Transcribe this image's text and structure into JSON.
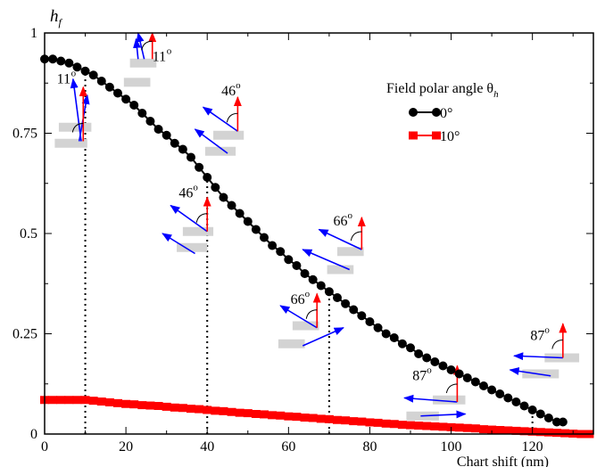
{
  "chart_data": {
    "type": "scatter",
    "xlabel": "Chart shift (nm)",
    "ylabel": "h",
    "ylabel_sub": "f",
    "xlim": [
      0,
      135
    ],
    "ylim": [
      0,
      1
    ],
    "x_ticks": [
      {
        "v": 0,
        "label": "0"
      },
      {
        "v": 20,
        "label": "20"
      },
      {
        "v": 40,
        "label": "40"
      },
      {
        "v": 60,
        "label": "60"
      },
      {
        "v": 80,
        "label": "80"
      },
      {
        "v": 100,
        "label": "100"
      },
      {
        "v": 120,
        "label": "120"
      }
    ],
    "y_ticks": [
      {
        "v": 0,
        "label": "0"
      },
      {
        "v": 0.25,
        "label": "0.25"
      },
      {
        "v": 0.5,
        "label": "0.5"
      },
      {
        "v": 0.75,
        "label": "0.75"
      },
      {
        "v": 1,
        "label": "1"
      }
    ],
    "grid": false,
    "legend": {
      "title": "Field polar angle θ",
      "title_sub": "h",
      "placement": "top-right",
      "entries": [
        {
          "label": "0°",
          "color": "#000000"
        },
        {
          "label": "10°",
          "color": "#ff0000"
        }
      ]
    },
    "series": [
      {
        "name": "0°",
        "color": "#000000",
        "x": [
          0,
          2,
          4,
          6,
          8,
          10,
          12,
          14,
          16,
          18,
          20,
          22,
          24,
          26,
          28,
          30,
          32,
          34,
          36,
          38,
          40,
          42,
          44,
          46,
          48,
          50,
          52,
          54,
          56,
          58,
          60,
          62,
          64,
          66,
          68,
          70,
          72,
          74,
          76,
          78,
          80,
          82,
          84,
          86,
          88,
          90,
          92,
          94,
          96,
          98,
          100,
          102,
          104,
          106,
          108,
          110,
          112,
          114,
          116,
          118,
          120,
          122,
          124,
          126,
          127.5
        ],
        "y": [
          0.935,
          0.935,
          0.93,
          0.925,
          0.915,
          0.905,
          0.895,
          0.88,
          0.865,
          0.85,
          0.835,
          0.82,
          0.8,
          0.78,
          0.76,
          0.745,
          0.725,
          0.71,
          0.69,
          0.665,
          0.64,
          0.615,
          0.59,
          0.57,
          0.55,
          0.53,
          0.51,
          0.49,
          0.47,
          0.455,
          0.435,
          0.42,
          0.4,
          0.385,
          0.37,
          0.355,
          0.34,
          0.325,
          0.31,
          0.295,
          0.28,
          0.265,
          0.25,
          0.24,
          0.225,
          0.215,
          0.2,
          0.19,
          0.18,
          0.17,
          0.16,
          0.15,
          0.14,
          0.13,
          0.12,
          0.11,
          0.1,
          0.09,
          0.08,
          0.07,
          0.06,
          0.05,
          0.04,
          0.03,
          0.03
        ]
      },
      {
        "name": "10°",
        "color": "#ff0000",
        "x": [
          0,
          2,
          4,
          6,
          8,
          10,
          12,
          14,
          16,
          18,
          20,
          22,
          24,
          26,
          28,
          30,
          32,
          34,
          36,
          38,
          40,
          42,
          44,
          46,
          48,
          50,
          52,
          54,
          56,
          58,
          60,
          62,
          64,
          66,
          68,
          70,
          72,
          74,
          76,
          78,
          80,
          82,
          84,
          86,
          88,
          90,
          92,
          94,
          96,
          98,
          100,
          102,
          104,
          106,
          108,
          110,
          112,
          114,
          116,
          118,
          120,
          122,
          124,
          126,
          128,
          130,
          132,
          134
        ],
        "y": [
          0.085,
          0.085,
          0.085,
          0.085,
          0.085,
          0.085,
          0.083,
          0.081,
          0.079,
          0.077,
          0.075,
          0.074,
          0.072,
          0.071,
          0.07,
          0.068,
          0.066,
          0.065,
          0.063,
          0.062,
          0.06,
          0.058,
          0.057,
          0.055,
          0.053,
          0.052,
          0.05,
          0.049,
          0.047,
          0.046,
          0.044,
          0.043,
          0.041,
          0.04,
          0.038,
          0.037,
          0.035,
          0.034,
          0.032,
          0.031,
          0.029,
          0.028,
          0.026,
          0.025,
          0.023,
          0.022,
          0.021,
          0.02,
          0.019,
          0.018,
          0.017,
          0.016,
          0.015,
          0.014,
          0.012,
          0.011,
          0.01,
          0.009,
          0.008,
          0.007,
          0.006,
          0.005,
          0.004,
          0.003,
          0.002,
          0.001,
          0,
          0
        ]
      }
    ],
    "guide_lines_x": [
      10,
      40,
      70,
      120
    ],
    "annotations": [
      {
        "id": "a1",
        "label": "11",
        "deg": "o",
        "x": 26.5,
        "y": 0.93,
        "arrows": [
          [
            24.5,
            0.935,
            23,
            1.0,
            "blue"
          ],
          [
            23,
            0.935,
            22.5,
            0.985,
            "blue"
          ],
          [
            26.5,
            0.935,
            26.5,
            1.0,
            "red"
          ]
        ],
        "bars": [
          [
            21,
            0.925,
            27.5,
            0.925
          ],
          [
            19.5,
            0.877,
            26,
            0.877
          ]
        ]
      },
      {
        "id": "a2",
        "label": "11",
        "deg": "o",
        "x": 3.0,
        "y": 0.875,
        "arrows": [
          [
            9,
            0.73,
            7,
            0.885,
            "blue"
          ],
          [
            8.5,
            0.73,
            10.5,
            0.845,
            "blue"
          ],
          [
            9.5,
            0.73,
            9.5,
            0.865,
            "red"
          ]
        ],
        "bars": [
          [
            3.5,
            0.765,
            11.5,
            0.765
          ],
          [
            2.5,
            0.725,
            10.5,
            0.725
          ]
        ]
      },
      {
        "id": "a3",
        "label": "46",
        "deg": "o",
        "x": 43.5,
        "y": 0.845,
        "arrows": [
          [
            47.5,
            0.755,
            39,
            0.815,
            "blue"
          ],
          [
            45.0,
            0.7,
            37,
            0.76,
            "blue"
          ],
          [
            47.5,
            0.755,
            47.5,
            0.84,
            "red"
          ]
        ],
        "bars": [
          [
            41.5,
            0.745,
            49,
            0.745
          ],
          [
            39.5,
            0.705,
            47,
            0.705
          ]
        ]
      },
      {
        "id": "a4",
        "label": "46",
        "deg": "o",
        "x": 33,
        "y": 0.59,
        "arrows": [
          [
            40,
            0.505,
            31,
            0.57,
            "blue"
          ],
          [
            37,
            0.45,
            29,
            0.5,
            "blue"
          ],
          [
            40,
            0.505,
            40,
            0.59,
            "red"
          ]
        ],
        "bars": [
          [
            34,
            0.505,
            41.5,
            0.505
          ],
          [
            32.5,
            0.465,
            40,
            0.465
          ]
        ]
      },
      {
        "id": "a5",
        "label": "66",
        "deg": "o",
        "x": 71,
        "y": 0.52,
        "arrows": [
          [
            78,
            0.46,
            67.5,
            0.51,
            "blue"
          ],
          [
            75,
            0.41,
            63.5,
            0.46,
            "blue"
          ],
          [
            78,
            0.46,
            78,
            0.54,
            "red"
          ]
        ],
        "bars": [
          [
            72,
            0.455,
            78.5,
            0.455
          ],
          [
            69.5,
            0.41,
            76,
            0.41
          ]
        ]
      },
      {
        "id": "a6",
        "label": "66",
        "deg": "o",
        "x": 60.5,
        "y": 0.325,
        "arrows": [
          [
            67,
            0.265,
            58,
            0.32,
            "blue"
          ],
          [
            63.5,
            0.22,
            73.5,
            0.265,
            "blue"
          ],
          [
            67,
            0.265,
            67,
            0.35,
            "red"
          ]
        ],
        "bars": [
          [
            61,
            0.27,
            67.5,
            0.27
          ],
          [
            57.5,
            0.225,
            64,
            0.225
          ]
        ]
      },
      {
        "id": "a7",
        "label": "87",
        "deg": "o",
        "x": 119.5,
        "y": 0.235,
        "arrows": [
          [
            127.5,
            0.19,
            115.5,
            0.195,
            "blue"
          ],
          [
            124.5,
            0.145,
            114.5,
            0.16,
            "blue"
          ],
          [
            127.5,
            0.19,
            127.5,
            0.275,
            "red"
          ]
        ],
        "bars": [
          [
            123,
            0.19,
            131.5,
            0.19
          ],
          [
            117.5,
            0.15,
            126.5,
            0.15
          ]
        ]
      },
      {
        "id": "a8",
        "label": "87",
        "deg": "o",
        "x": 90.5,
        "y": 0.135,
        "arrows": [
          [
            101.5,
            0.08,
            88.5,
            0.09,
            "blue"
          ],
          [
            92.5,
            0.045,
            103.5,
            0.05,
            "blue"
          ],
          [
            101.5,
            0.08,
            101.5,
            0.17,
            "red"
          ]
        ],
        "bars": [
          [
            95.5,
            0.085,
            103.5,
            0.085
          ],
          [
            89,
            0.045,
            97,
            0.045
          ]
        ]
      }
    ]
  }
}
